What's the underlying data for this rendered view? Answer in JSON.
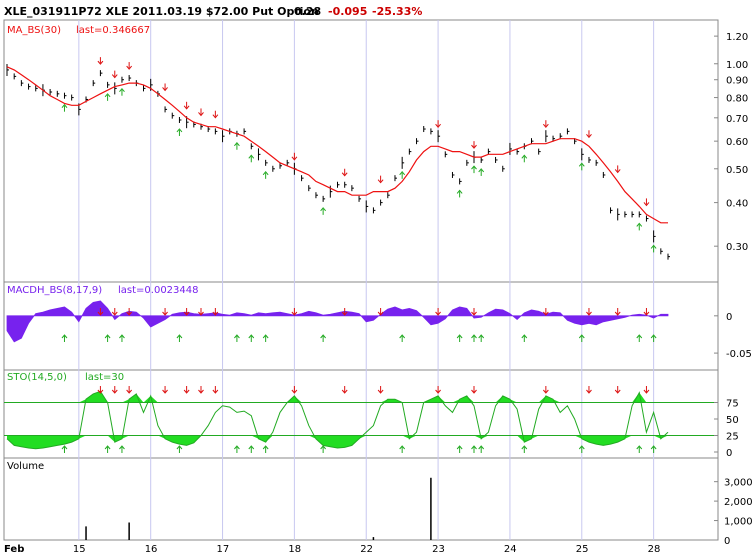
{
  "header": {
    "symbol": "XLE_031911P72 XLE 2011.03.19 $72.00 Put Option",
    "last": "0.28",
    "change": "-0.095",
    "change_pct": "-25.33%",
    "change_color": "#cc0000"
  },
  "chart_data": [
    {
      "type": "line",
      "panel": "price",
      "title": "MA_BS(30)",
      "subtitle": "last=0.346667",
      "scale": "log",
      "ylim": [
        0.24,
        1.3
      ],
      "yticks": [
        "1.20",
        "1.00",
        "0.90",
        "0.80",
        "0.70",
        "0.60",
        "0.50",
        "0.40",
        "0.30"
      ],
      "ytick_values": [
        1.2,
        1.0,
        0.9,
        0.8,
        0.7,
        0.6,
        0.5,
        0.4,
        0.3
      ],
      "x_ticks": [
        "Feb",
        "15",
        "16",
        "17",
        "18",
        "22",
        "23",
        "24",
        "25",
        "28"
      ],
      "x_tick_index": [
        0,
        10,
        20,
        30,
        40,
        50,
        60,
        70,
        80,
        90
      ],
      "ma_values": [
        0.98,
        0.96,
        0.93,
        0.9,
        0.87,
        0.84,
        0.81,
        0.79,
        0.77,
        0.76,
        0.76,
        0.78,
        0.8,
        0.82,
        0.84,
        0.86,
        0.87,
        0.88,
        0.88,
        0.87,
        0.85,
        0.82,
        0.79,
        0.76,
        0.73,
        0.7,
        0.68,
        0.67,
        0.66,
        0.66,
        0.65,
        0.64,
        0.63,
        0.62,
        0.6,
        0.58,
        0.56,
        0.54,
        0.52,
        0.51,
        0.5,
        0.49,
        0.48,
        0.46,
        0.45,
        0.44,
        0.43,
        0.43,
        0.42,
        0.42,
        0.42,
        0.43,
        0.43,
        0.43,
        0.44,
        0.46,
        0.49,
        0.53,
        0.56,
        0.58,
        0.58,
        0.57,
        0.56,
        0.56,
        0.55,
        0.54,
        0.54,
        0.55,
        0.55,
        0.55,
        0.56,
        0.57,
        0.58,
        0.59,
        0.59,
        0.59,
        0.6,
        0.61,
        0.61,
        0.61,
        0.6,
        0.58,
        0.55,
        0.52,
        0.49,
        0.46,
        0.43,
        0.41,
        0.39,
        0.37,
        0.36,
        0.35,
        0.35
      ],
      "ma_color": "#ee1111",
      "price_values": [
        0.96,
        0.92,
        0.88,
        0.86,
        0.85,
        0.84,
        0.83,
        0.82,
        0.81,
        0.8,
        0.74,
        0.79,
        0.88,
        0.94,
        0.87,
        0.85,
        0.9,
        0.91,
        0.88,
        0.85,
        0.87,
        0.82,
        0.74,
        0.71,
        0.69,
        0.68,
        0.67,
        0.66,
        0.65,
        0.64,
        0.62,
        0.64,
        0.63,
        0.64,
        0.58,
        0.55,
        0.52,
        0.5,
        0.51,
        0.52,
        0.5,
        0.47,
        0.44,
        0.42,
        0.41,
        0.43,
        0.45,
        0.45,
        0.44,
        0.41,
        0.39,
        0.38,
        0.4,
        0.42,
        0.47,
        0.52,
        0.56,
        0.6,
        0.65,
        0.64,
        0.62,
        0.55,
        0.48,
        0.46,
        0.52,
        0.54,
        0.53,
        0.56,
        0.53,
        0.5,
        0.57,
        0.56,
        0.58,
        0.6,
        0.56,
        0.62,
        0.61,
        0.62,
        0.64,
        0.6,
        0.55,
        0.53,
        0.52,
        0.48,
        0.38,
        0.37,
        0.37,
        0.37,
        0.37,
        0.36,
        0.32,
        0.29,
        0.28
      ],
      "buy_signals": [
        8,
        14,
        16,
        24,
        32,
        34,
        36,
        44,
        55,
        63,
        65,
        66,
        72,
        80,
        88,
        90
      ],
      "sell_signals": [
        13,
        15,
        17,
        22,
        25,
        27,
        29,
        40,
        47,
        52,
        60,
        65,
        75,
        81,
        85,
        89
      ]
    },
    {
      "type": "area",
      "panel": "macd",
      "title": "MACDH_BS(8,17,9)",
      "subtitle": "last=0.0023448",
      "color": "#7722ee",
      "ylim": [
        -0.07,
        0.04
      ],
      "yticks": [
        "0",
        "-0.05"
      ],
      "ytick_values": [
        0,
        -0.05
      ],
      "values": [
        -0.02,
        -0.035,
        -0.03,
        -0.01,
        0.003,
        0.005,
        0.008,
        0.01,
        0.012,
        0.005,
        -0.008,
        0.01,
        0.018,
        0.02,
        0.01,
        -0.005,
        0.003,
        0.006,
        0.005,
        -0.003,
        -0.015,
        -0.01,
        -0.005,
        0.002,
        0.004,
        0.005,
        0.003,
        0.002,
        0.003,
        0.004,
        0.002,
        0.001,
        0.004,
        0.003,
        0.001,
        0.004,
        0.003,
        0.004,
        0.005,
        0.003,
        0.001,
        0.003,
        0.006,
        0.004,
        0.001,
        0.002,
        0.004,
        0.006,
        0.005,
        0.003,
        -0.008,
        -0.006,
        0.002,
        0.009,
        0.012,
        0.008,
        0.01,
        0.007,
        -0.002,
        -0.012,
        -0.01,
        -0.004,
        0.008,
        0.012,
        0.01,
        -0.003,
        -0.002,
        0.004,
        0.009,
        0.008,
        0.003,
        -0.005,
        0.004,
        0.008,
        0.006,
        0.002,
        0.005,
        0.004,
        -0.006,
        -0.01,
        -0.012,
        -0.01,
        -0.012,
        -0.008,
        -0.006,
        -0.004,
        -0.002,
        0.001,
        0.002,
        0.001,
        -0.003,
        0.002,
        0.002
      ]
    },
    {
      "type": "area",
      "panel": "stochastic",
      "title": "STO(14,5,0)",
      "subtitle": "last=30",
      "color": "#22dd22",
      "ylim": [
        0,
        100
      ],
      "yticks": [
        "75",
        "50",
        "25",
        "0"
      ],
      "ytick_values": [
        75,
        50,
        25,
        0
      ],
      "reference_lines": [
        75,
        25
      ],
      "values": [
        20,
        10,
        8,
        6,
        5,
        6,
        8,
        10,
        12,
        15,
        20,
        80,
        88,
        92,
        75,
        15,
        20,
        80,
        88,
        60,
        85,
        40,
        20,
        15,
        12,
        10,
        14,
        25,
        40,
        60,
        70,
        68,
        60,
        62,
        55,
        20,
        15,
        30,
        60,
        75,
        85,
        70,
        40,
        20,
        10,
        8,
        6,
        7,
        10,
        20,
        30,
        40,
        70,
        80,
        80,
        75,
        20,
        30,
        75,
        80,
        85,
        70,
        60,
        80,
        85,
        70,
        20,
        30,
        70,
        85,
        80,
        65,
        15,
        20,
        65,
        85,
        80,
        60,
        70,
        50,
        20,
        15,
        12,
        10,
        12,
        15,
        20,
        70,
        90,
        30,
        60,
        20,
        30
      ]
    },
    {
      "type": "bar",
      "panel": "volume",
      "title": "Volume",
      "ylim": [
        0,
        3600
      ],
      "yticks": [
        "3,000",
        "2,000",
        "1,000",
        "0"
      ],
      "ytick_values": [
        3000,
        2000,
        1000,
        0
      ],
      "values": [
        0,
        0,
        0,
        0,
        0,
        0,
        0,
        0,
        0,
        0,
        0,
        700,
        0,
        0,
        0,
        0,
        0,
        900,
        0,
        0,
        0,
        0,
        0,
        0,
        0,
        0,
        0,
        0,
        0,
        0,
        0,
        0,
        0,
        0,
        0,
        0,
        0,
        0,
        0,
        0,
        0,
        0,
        0,
        0,
        0,
        0,
        0,
        0,
        0,
        0,
        0,
        150,
        0,
        0,
        0,
        0,
        0,
        0,
        0,
        3200,
        0,
        0,
        0,
        0,
        0,
        0,
        0,
        0,
        0,
        0,
        0,
        0,
        0,
        0,
        0,
        0,
        0,
        0,
        0,
        0,
        0,
        0,
        0,
        0,
        0,
        0,
        0,
        0,
        0,
        0,
        0,
        0,
        0
      ]
    }
  ]
}
